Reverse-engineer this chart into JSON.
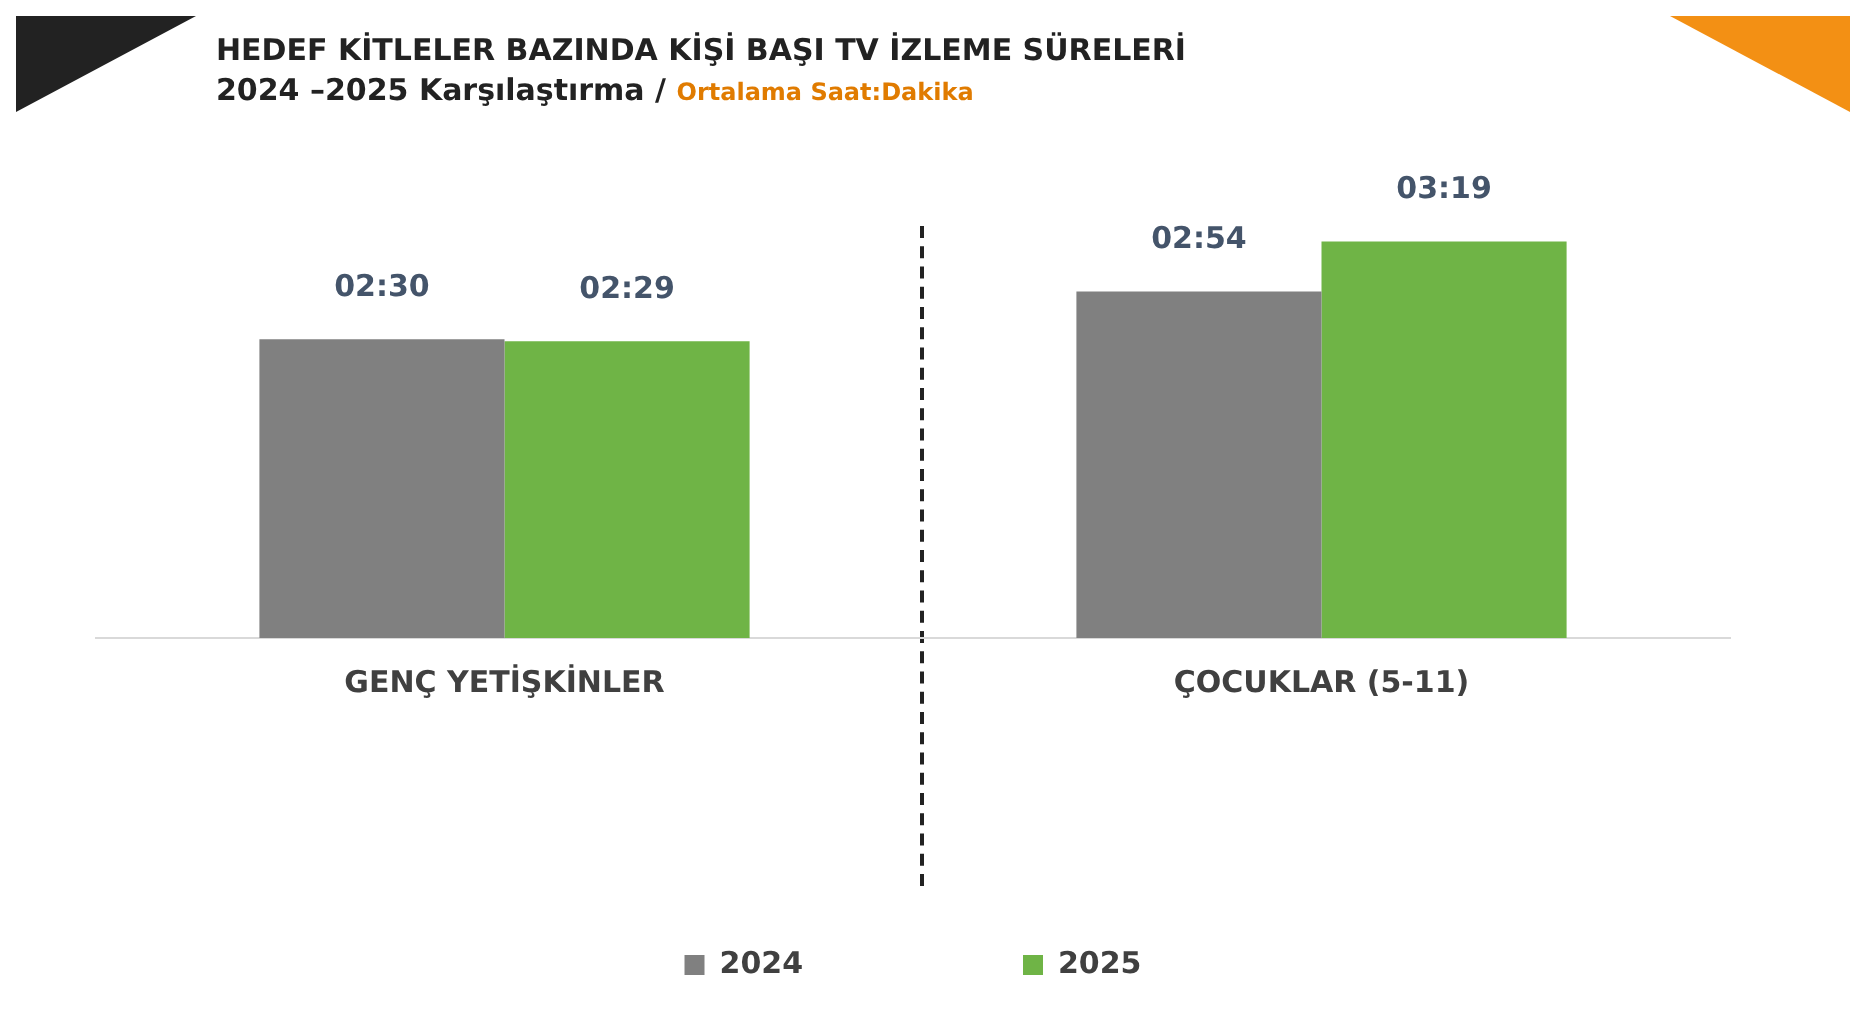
{
  "chart_data": {
    "type": "bar",
    "title": "HEDEF KİTLELER BAZINDA KİŞİ BAŞI TV İZLEME SÜRELERİ",
    "subtitle": "2024 –2025 Karşılaştırma /",
    "annotations": [
      "Ortalama Saat:Dakika"
    ],
    "categories": [
      "GENÇ YETİŞKİNLER",
      "ÇOCUKLAR (5-11)"
    ],
    "series": [
      {
        "name": "2024",
        "color": "#808080",
        "values": [
          150,
          174
        ],
        "value_labels": [
          "02:30",
          "02:54"
        ]
      },
      {
        "name": "2025",
        "color": "#6fb446",
        "values": [
          149,
          199
        ],
        "value_labels": [
          "02:29",
          "03:19"
        ]
      }
    ],
    "grid": false,
    "legend": "bottom"
  }
}
